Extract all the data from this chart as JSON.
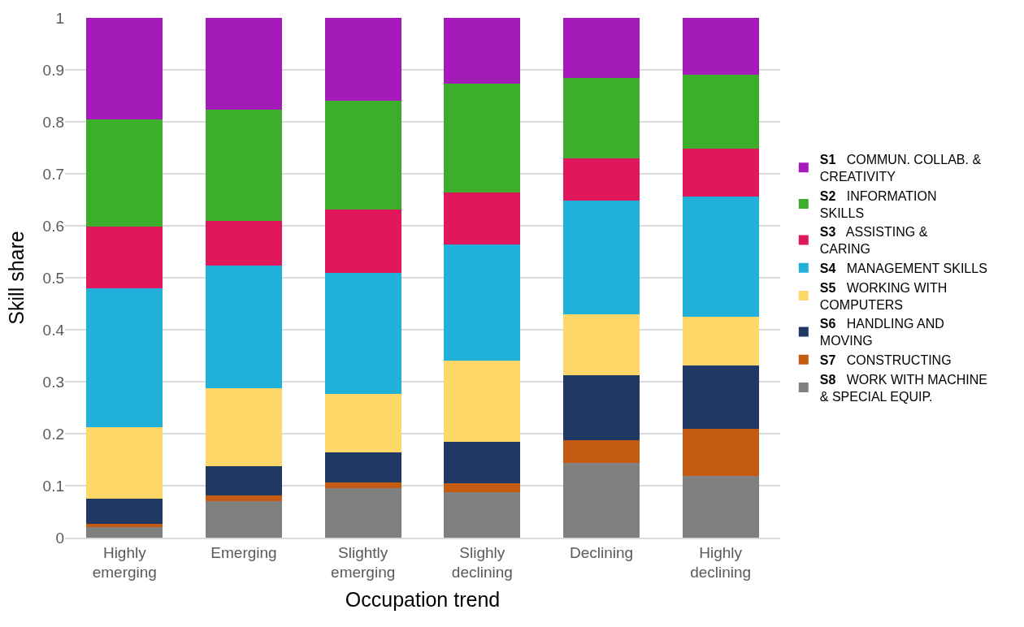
{
  "chart_data": {
    "type": "bar",
    "stacked": true,
    "xlabel": "Occupation trend",
    "ylabel": "Skill share",
    "categories": [
      "Highly emerging",
      "Emerging",
      "Slightly emerging",
      "Slighly declining",
      "Declining",
      "Highly declining"
    ],
    "series": [
      {
        "name": "S8 WORK WITH MACHINE & SPECIAL EQUIP.",
        "color": "#808080",
        "values": [
          0.021,
          0.07,
          0.095,
          0.087,
          0.144,
          0.119
        ]
      },
      {
        "name": "S7 CONSTRUCTING",
        "color": "#c55a11",
        "values": [
          0.005,
          0.012,
          0.012,
          0.018,
          0.043,
          0.09
        ]
      },
      {
        "name": "S6 HANDLING AND MOVING",
        "color": "#203864",
        "values": [
          0.049,
          0.055,
          0.057,
          0.079,
          0.126,
          0.123
        ]
      },
      {
        "name": "S5 WORKING WITH COMPUTERS",
        "color": "#fdd868",
        "values": [
          0.137,
          0.15,
          0.112,
          0.156,
          0.116,
          0.093
        ]
      },
      {
        "name": "S4 MANAGEMENT SKILLS",
        "color": "#20b0d8",
        "values": [
          0.267,
          0.236,
          0.233,
          0.224,
          0.219,
          0.231
        ]
      },
      {
        "name": "S3 ASSISTING & CARING",
        "color": "#e0175c",
        "values": [
          0.12,
          0.087,
          0.122,
          0.1,
          0.082,
          0.092
        ]
      },
      {
        "name": "S2 INFORMATION SKILLS",
        "color": "#3cae2c",
        "values": [
          0.206,
          0.213,
          0.209,
          0.209,
          0.155,
          0.142
        ]
      },
      {
        "name": "S1 COMMUN. COLLAB. & CREATIVITY",
        "color": "#a51bba",
        "values": [
          0.195,
          0.177,
          0.16,
          0.127,
          0.115,
          0.11
        ]
      }
    ],
    "ylim": [
      0,
      1
    ],
    "yticks": [
      0,
      0.1,
      0.2,
      0.3,
      0.4,
      0.5,
      0.6,
      0.7,
      0.8,
      0.9,
      1
    ],
    "grid": "y",
    "legend": "right"
  }
}
